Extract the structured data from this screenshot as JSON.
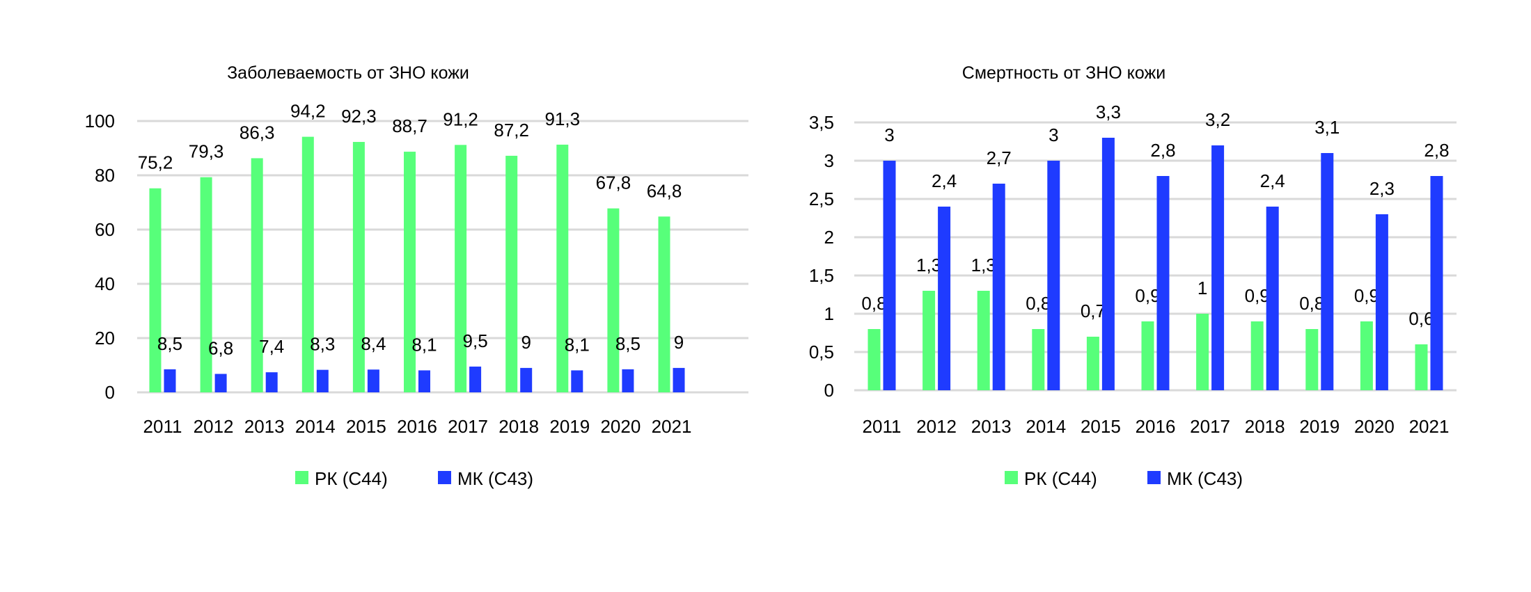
{
  "chart_data": [
    {
      "type": "bar",
      "title": "Заболеваемость от ЗНО кожи",
      "xlabel": "",
      "ylabel": "",
      "ylim": [
        0,
        100
      ],
      "yticks": [
        0,
        20,
        40,
        60,
        80,
        100
      ],
      "ytick_labels": [
        "0",
        "20",
        "40",
        "60",
        "80",
        "100"
      ],
      "grid": true,
      "legend_position": "bottom",
      "categories": [
        "2011",
        "2012",
        "2013",
        "2014",
        "2015",
        "2016",
        "2017",
        "2018",
        "2019",
        "2020",
        "2021"
      ],
      "series": [
        {
          "name": "РК (С44)",
          "color": "#57ff7a",
          "values": [
            75.2,
            79.3,
            86.3,
            94.2,
            92.3,
            88.7,
            91.2,
            87.2,
            91.3,
            67.8,
            64.8
          ],
          "labels": [
            "75,2",
            "79,3",
            "86,3",
            "94,2",
            "92,3",
            "88,7",
            "91,2",
            "87,2",
            "91,3",
            "67,8",
            "64,8"
          ]
        },
        {
          "name": "МК (С43)",
          "color": "#1f3bff",
          "values": [
            8.5,
            6.8,
            7.4,
            8.3,
            8.4,
            8.1,
            9.5,
            9,
            8.1,
            8.5,
            9
          ],
          "labels": [
            "8,5",
            "6,8",
            "7,4",
            "8,3",
            "8,4",
            "8,1",
            "9,5",
            "9",
            "8,1",
            "8,5",
            "9"
          ]
        }
      ]
    },
    {
      "type": "bar",
      "title": "Смертность от ЗНО кожи",
      "xlabel": "",
      "ylabel": "",
      "ylim": [
        0,
        3.5
      ],
      "yticks": [
        0,
        0.5,
        1,
        1.5,
        2,
        2.5,
        3,
        3.5
      ],
      "ytick_labels": [
        "0",
        "0,5",
        "1",
        "1,5",
        "2",
        "2,5",
        "3",
        "3,5"
      ],
      "grid": true,
      "legend_position": "bottom",
      "categories": [
        "2011",
        "2012",
        "2013",
        "2014",
        "2015",
        "2016",
        "2017",
        "2018",
        "2019",
        "2020",
        "2021"
      ],
      "series": [
        {
          "name": "РК (С44)",
          "color": "#57ff7a",
          "values": [
            0.8,
            1.3,
            1.3,
            0.8,
            0.7,
            0.9,
            1,
            0.9,
            0.8,
            0.9,
            0.6
          ],
          "labels": [
            "0,8",
            "1,3",
            "1,3",
            "0,8",
            "0,7",
            "0,9",
            "1",
            "0,9",
            "0,8",
            "0,9",
            "0,6"
          ]
        },
        {
          "name": "МК (С43)",
          "color": "#1f3bff",
          "values": [
            3,
            2.4,
            2.7,
            3,
            3.3,
            2.8,
            3.2,
            2.4,
            3.1,
            2.3,
            2.8
          ],
          "labels": [
            "3",
            "2,4",
            "2,7",
            "3",
            "3,3",
            "2,8",
            "3,2",
            "2,4",
            "3,1",
            "2,3",
            "2,8"
          ]
        }
      ]
    }
  ]
}
